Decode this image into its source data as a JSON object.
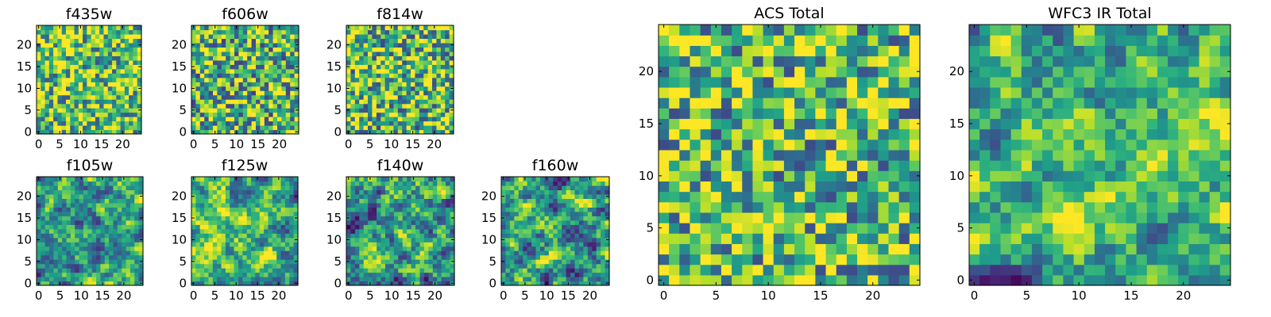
{
  "chart_data": [
    {
      "type": "heatmap",
      "title": "f435w",
      "colormap": "viridis",
      "grid_size": 25,
      "xlim": [
        0,
        24
      ],
      "ylim": [
        0,
        24
      ],
      "x_ticks": [
        "0",
        "5",
        "10",
        "15",
        "20"
      ],
      "y_ticks": [
        "0",
        "5",
        "10",
        "15",
        "20"
      ]
    },
    {
      "type": "heatmap",
      "title": "f606w",
      "colormap": "viridis",
      "grid_size": 25,
      "xlim": [
        0,
        24
      ],
      "ylim": [
        0,
        24
      ],
      "x_ticks": [
        "0",
        "5",
        "10",
        "15",
        "20"
      ],
      "y_ticks": [
        "0",
        "5",
        "10",
        "15",
        "20"
      ]
    },
    {
      "type": "heatmap",
      "title": "f814w",
      "colormap": "viridis",
      "grid_size": 25,
      "xlim": [
        0,
        24
      ],
      "ylim": [
        0,
        24
      ],
      "x_ticks": [
        "0",
        "5",
        "10",
        "15",
        "20"
      ],
      "y_ticks": [
        "0",
        "5",
        "10",
        "15",
        "20"
      ]
    },
    {
      "type": "heatmap",
      "title": "f105w",
      "colormap": "viridis",
      "grid_size": 25,
      "xlim": [
        0,
        24
      ],
      "ylim": [
        0,
        24
      ],
      "x_ticks": [
        "0",
        "5",
        "10",
        "15",
        "20"
      ],
      "y_ticks": [
        "0",
        "5",
        "10",
        "15",
        "20"
      ]
    },
    {
      "type": "heatmap",
      "title": "f125w",
      "colormap": "viridis",
      "grid_size": 25,
      "xlim": [
        0,
        24
      ],
      "ylim": [
        0,
        24
      ],
      "x_ticks": [
        "0",
        "5",
        "10",
        "15",
        "20"
      ],
      "y_ticks": [
        "0",
        "5",
        "10",
        "15",
        "20"
      ]
    },
    {
      "type": "heatmap",
      "title": "f140w",
      "colormap": "viridis",
      "grid_size": 25,
      "xlim": [
        0,
        24
      ],
      "ylim": [
        0,
        24
      ],
      "x_ticks": [
        "0",
        "5",
        "10",
        "15",
        "20"
      ],
      "y_ticks": [
        "0",
        "5",
        "10",
        "15",
        "20"
      ]
    },
    {
      "type": "heatmap",
      "title": "f160w",
      "colormap": "viridis",
      "grid_size": 25,
      "xlim": [
        0,
        24
      ],
      "ylim": [
        0,
        24
      ],
      "x_ticks": [
        "0",
        "5",
        "10",
        "15",
        "20"
      ],
      "y_ticks": [
        "0",
        "5",
        "10",
        "15",
        "20"
      ]
    },
    {
      "type": "heatmap",
      "title": "ACS Total",
      "colormap": "viridis",
      "grid_size": 25,
      "xlim": [
        0,
        24
      ],
      "ylim": [
        0,
        24
      ],
      "x_ticks": [
        "0",
        "5",
        "10",
        "15",
        "20"
      ],
      "y_ticks": [
        "0",
        "5",
        "10",
        "15",
        "20"
      ]
    },
    {
      "type": "heatmap",
      "title": "WFC3 IR Total",
      "colormap": "viridis",
      "grid_size": 25,
      "xlim": [
        0,
        24
      ],
      "ylim": [
        0,
        24
      ],
      "x_ticks": [
        "0",
        "5",
        "10",
        "15",
        "20"
      ],
      "y_ticks": [
        "0",
        "5",
        "10",
        "15",
        "20"
      ]
    }
  ]
}
